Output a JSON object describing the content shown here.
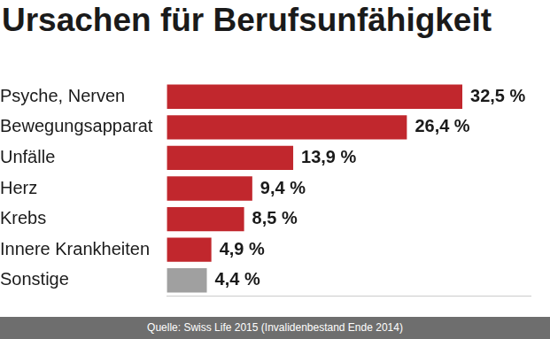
{
  "chart_data": {
    "type": "bar",
    "orientation": "horizontal",
    "title": "Ursachen für Berufsunfähigkeit",
    "categories": [
      "Psyche, Nerven",
      "Bewegungsapparat",
      "Unfälle",
      "Herz",
      "Krebs",
      "Innere Krankheiten",
      "Sonstige"
    ],
    "values": [
      32.5,
      26.4,
      13.9,
      9.4,
      8.5,
      4.9,
      4.4
    ],
    "value_labels": [
      "32,5 %",
      "26,4 %",
      "13,9 %",
      "9,4 %",
      "8,5 %",
      "4,9 %",
      "4,4 %"
    ],
    "colors": [
      "#c1272d",
      "#c1272d",
      "#c1272d",
      "#c1272d",
      "#c1272d",
      "#c1272d",
      "#a0a0a0"
    ],
    "xlim": [
      0,
      40
    ],
    "grid": false,
    "data_labels": true,
    "tick_labels": "y",
    "source": "Quelle: Swiss Life 2015 (Invalidenbestand Ende 2014)"
  }
}
